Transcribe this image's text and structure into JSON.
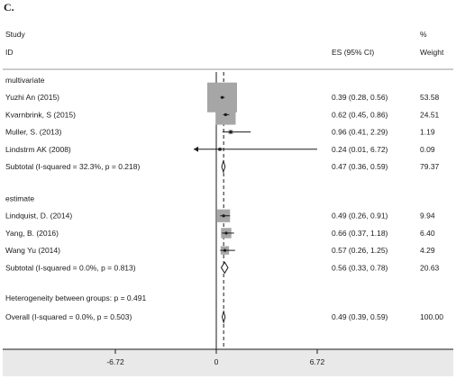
{
  "panel_label": "C.",
  "chart_data": {
    "type": "forest",
    "header": {
      "study": "Study",
      "id": "ID",
      "es_ci": "ES (95% CI)",
      "pct": "%",
      "weight": "Weight"
    },
    "x_axis": {
      "range": [
        -6.72,
        6.72
      ],
      "ticks": [
        -6.72,
        0,
        6.72
      ],
      "tick_labels": [
        "-6.72",
        "0",
        "6.72"
      ],
      "reference_line": 0,
      "overall_line": 0.49
    },
    "groups": [
      {
        "label": "multivariate",
        "studies": [
          {
            "id": "Yuzhi An (2015)",
            "es": 0.39,
            "lo": 0.28,
            "hi": 0.56,
            "ci_text": "0.39 (0.28, 0.56)",
            "weight": 53.58,
            "weight_text": "53.58"
          },
          {
            "id": "Kvarnbrink, S (2015)",
            "es": 0.62,
            "lo": 0.45,
            "hi": 0.86,
            "ci_text": "0.62 (0.45, 0.86)",
            "weight": 24.51,
            "weight_text": "24.51"
          },
          {
            "id": "Muller, S. (2013)",
            "es": 0.96,
            "lo": 0.41,
            "hi": 2.29,
            "ci_text": "0.96 (0.41, 2.29)",
            "weight": 1.19,
            "weight_text": "1.19"
          },
          {
            "id": "Lindstrm AK (2008)",
            "es": 0.24,
            "lo": 0.01,
            "hi": 6.72,
            "ci_text": "0.24 (0.01, 6.72)",
            "weight": 0.09,
            "weight_text": "0.09",
            "arrow_left": true
          }
        ],
        "subtotal": {
          "label": "Subtotal  (I-squared = 32.3%, p = 0.218)",
          "es": 0.47,
          "lo": 0.36,
          "hi": 0.59,
          "ci_text": "0.47 (0.36, 0.59)",
          "weight_text": "79.37"
        }
      },
      {
        "label": "estimate",
        "studies": [
          {
            "id": "Lindquist, D. (2014)",
            "es": 0.49,
            "lo": 0.26,
            "hi": 0.91,
            "ci_text": "0.49 (0.26, 0.91)",
            "weight": 9.94,
            "weight_text": "9.94"
          },
          {
            "id": "Yang, B. (2016)",
            "es": 0.66,
            "lo": 0.37,
            "hi": 1.18,
            "ci_text": "0.66 (0.37, 1.18)",
            "weight": 6.4,
            "weight_text": "6.40"
          },
          {
            "id": "Wang Yu (2014)",
            "es": 0.57,
            "lo": 0.26,
            "hi": 1.25,
            "ci_text": "0.57 (0.26, 1.25)",
            "weight": 4.29,
            "weight_text": "4.29"
          }
        ],
        "subtotal": {
          "label": "Subtotal  (I-squared = 0.0%, p = 0.813)",
          "es": 0.56,
          "lo": 0.33,
          "hi": 0.78,
          "ci_text": "0.56 (0.33, 0.78)",
          "weight_text": "20.63"
        }
      }
    ],
    "heterogeneity": "Heterogeneity between groups: p = 0.491",
    "overall": {
      "label": "Overall  (I-squared = 0.0%, p = 0.503)",
      "es": 0.49,
      "lo": 0.39,
      "hi": 0.59,
      "ci_text": "0.49 (0.39, 0.59)",
      "weight_text": "100.00"
    },
    "colors": {
      "box": "#a6a6a6",
      "line": "#1a1a1a",
      "axis_band": "#e9e9e9",
      "separator": "#9a9a9a"
    }
  }
}
